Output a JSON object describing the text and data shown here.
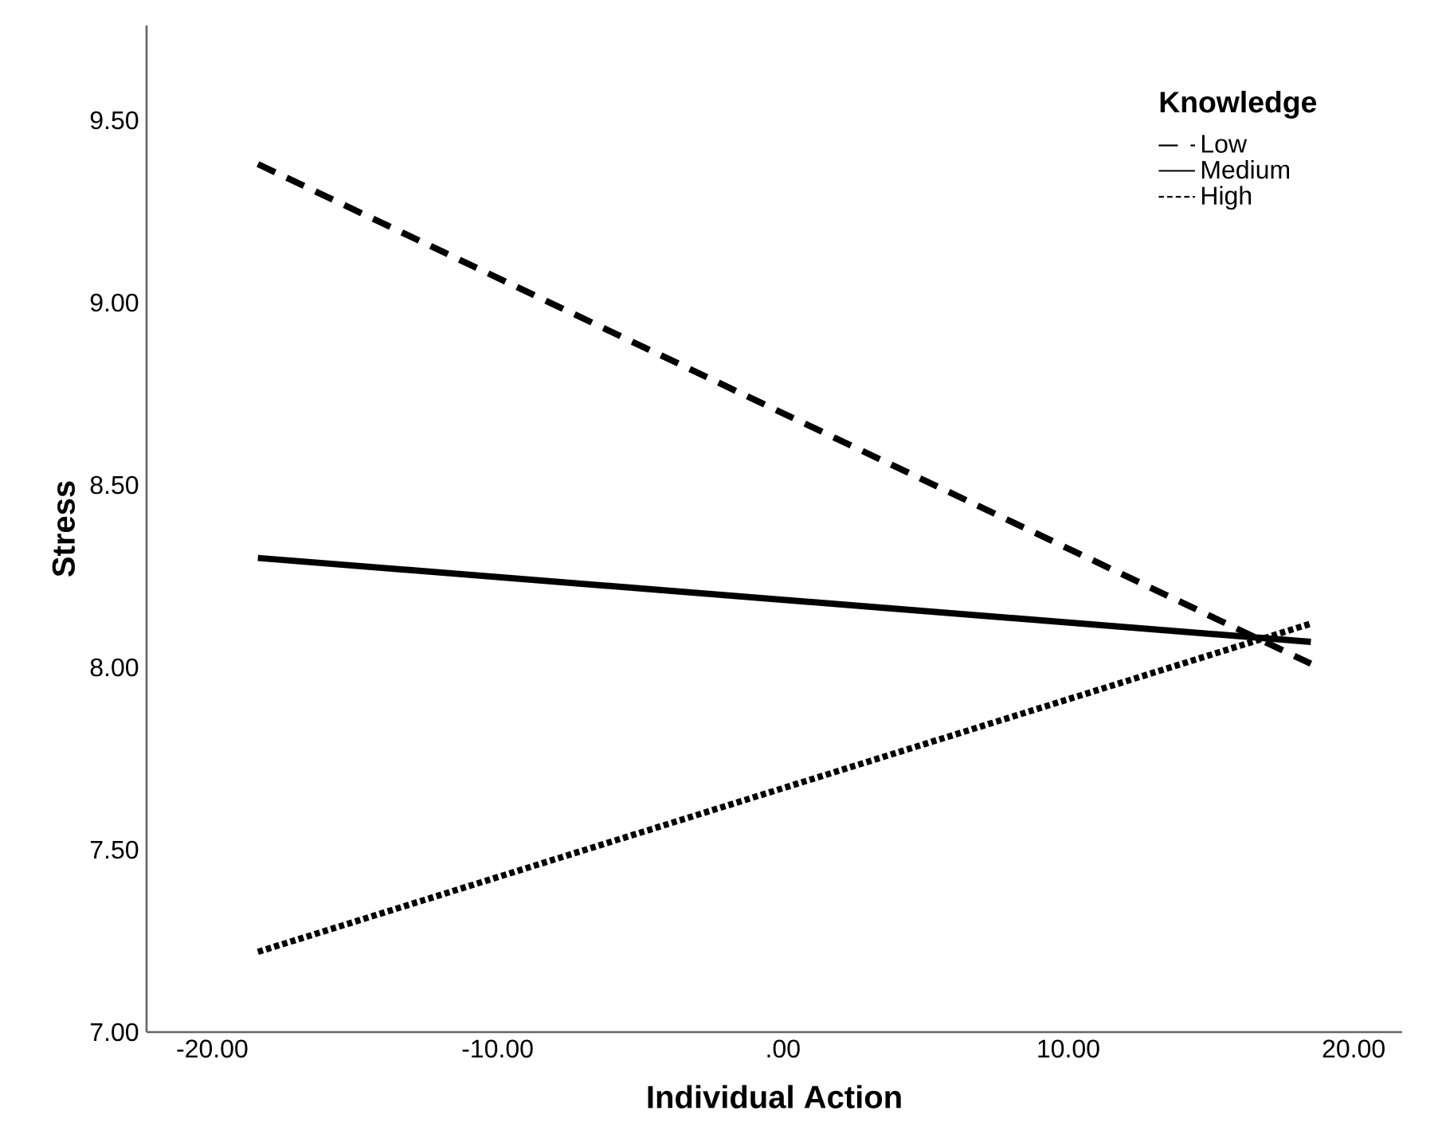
{
  "chart_data": {
    "type": "line",
    "xlabel": "Individual Action",
    "ylabel": "Stress",
    "legend_title": "Knowledge",
    "legend": "top right",
    "grid": false,
    "marker": "none",
    "xlim": [
      -22.3,
      21.7
    ],
    "ylim": [
      7,
      9.76
    ],
    "xticks": [
      {
        "value": -20,
        "label": "-20.00"
      },
      {
        "value": -10,
        "label": "-10.00"
      },
      {
        "value": 0,
        "label": ".00"
      },
      {
        "value": 10,
        "label": "10.00"
      },
      {
        "value": 20,
        "label": "20.00"
      }
    ],
    "yticks": [
      {
        "value": 7,
        "label": "7.00"
      },
      {
        "value": 7.5,
        "label": "7.50"
      },
      {
        "value": 8,
        "label": "8.00"
      },
      {
        "value": 8.5,
        "label": "8.50"
      },
      {
        "value": 9,
        "label": "9.00"
      },
      {
        "value": 9.5,
        "label": "9.50"
      }
    ],
    "x": [
      -18.4,
      18.5
    ],
    "series": [
      {
        "name": "Low",
        "color": "#000000",
        "line_style": "dashed",
        "values": [
          9.38,
          8.01
        ]
      },
      {
        "name": "Medium",
        "color": "#000000",
        "line_style": "solid",
        "values": [
          8.3,
          8.07
        ]
      },
      {
        "name": "High",
        "color": "#000000",
        "line_style": "dotted",
        "values": [
          7.22,
          8.12
        ]
      }
    ]
  }
}
